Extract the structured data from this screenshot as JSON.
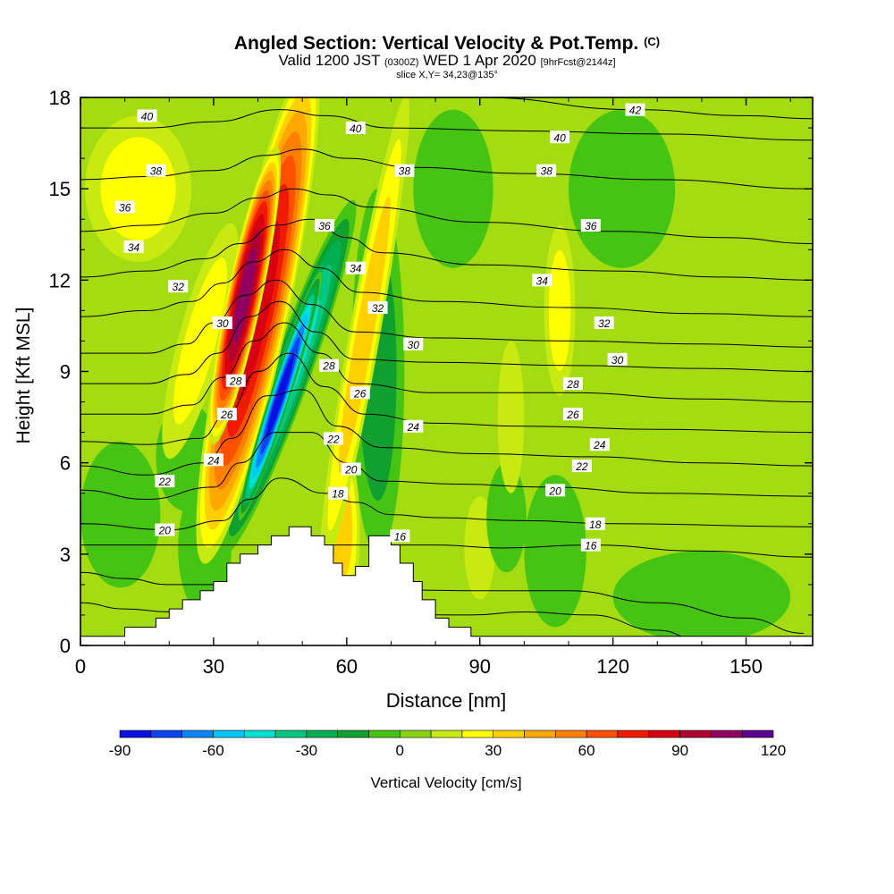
{
  "header": {
    "title_main": "Angled Section: Vertical Velocity & Pot.Temp.",
    "title_unit": "(C)",
    "valid_pre": "Valid 1200 JST",
    "valid_z": "(0300Z)",
    "valid_post": "WED 1 Apr 2020",
    "valid_fcst": "[9hrFcst@2144z]",
    "slice": "slice X,Y= 34,23@135°"
  },
  "colors": {
    "background": "#a4dc12",
    "contour": "#000000",
    "terrain": "#ffffff"
  },
  "chart_data": {
    "type": "heatmap",
    "xlabel": "Distance [nm]",
    "ylabel": "Height [Kft MSL]",
    "xlim": [
      0,
      165
    ],
    "ylim": [
      0,
      18
    ],
    "xticks": [
      0,
      30,
      60,
      90,
      120,
      150
    ],
    "yticks": [
      0,
      3,
      6,
      9,
      12,
      15,
      18
    ],
    "colorbar": {
      "label": "Vertical Velocity [cm/s]",
      "ticks": [
        -90,
        -60,
        -30,
        0,
        30,
        60,
        90,
        120
      ],
      "colors": [
        "#0a10e0",
        "#0a44f0",
        "#0a86fa",
        "#00c6ff",
        "#00e2d0",
        "#00c880",
        "#00b050",
        "#10a030",
        "#46c414",
        "#8ad414",
        "#c8ea10",
        "#ffff00",
        "#ffd000",
        "#ffa800",
        "#ff8000",
        "#ff5000",
        "#f01a00",
        "#d80010",
        "#b00030",
        "#900060",
        "#5c0090"
      ],
      "steps": [
        -90,
        -80,
        -70,
        -60,
        -50,
        -40,
        -30,
        -20,
        -10,
        0,
        10,
        20,
        30,
        40,
        50,
        60,
        70,
        80,
        90,
        100,
        110,
        120
      ]
    },
    "terrain_profile": [
      [
        0,
        0.3
      ],
      [
        10,
        0.3
      ],
      [
        10,
        0.6
      ],
      [
        17,
        0.6
      ],
      [
        17,
        0.9
      ],
      [
        20,
        0.9
      ],
      [
        20,
        1.2
      ],
      [
        23,
        1.2
      ],
      [
        23,
        1.5
      ],
      [
        27,
        1.5
      ],
      [
        27,
        1.8
      ],
      [
        30,
        1.8
      ],
      [
        30,
        2.1
      ],
      [
        33,
        2.1
      ],
      [
        33,
        2.7
      ],
      [
        36,
        2.7
      ],
      [
        36,
        3.0
      ],
      [
        40,
        3.0
      ],
      [
        40,
        3.3
      ],
      [
        43,
        3.3
      ],
      [
        43,
        3.6
      ],
      [
        47,
        3.6
      ],
      [
        47,
        3.9
      ],
      [
        52,
        3.9
      ],
      [
        52,
        3.6
      ],
      [
        55,
        3.6
      ],
      [
        55,
        3.3
      ],
      [
        57,
        3.3
      ],
      [
        57,
        2.7
      ],
      [
        59,
        2.7
      ],
      [
        59,
        2.3
      ],
      [
        62,
        2.3
      ],
      [
        62,
        2.6
      ],
      [
        65,
        2.6
      ],
      [
        65,
        3.6
      ],
      [
        70,
        3.6
      ],
      [
        70,
        3.3
      ],
      [
        72,
        3.3
      ],
      [
        72,
        2.7
      ],
      [
        75,
        2.7
      ],
      [
        75,
        2.1
      ],
      [
        77,
        2.1
      ],
      [
        77,
        1.5
      ],
      [
        80,
        1.5
      ],
      [
        80,
        0.9
      ],
      [
        83,
        0.9
      ],
      [
        83,
        0.6
      ],
      [
        88,
        0.6
      ],
      [
        88,
        0.3
      ],
      [
        165,
        0.3
      ]
    ],
    "w_features": [
      {
        "x": 40,
        "z": 11,
        "rx": 7,
        "rz": 8.5,
        "rot": 12,
        "w": 80
      },
      {
        "x": 37,
        "z": 11.5,
        "rx": 4,
        "rz": 5,
        "rot": 12,
        "w": 100
      },
      {
        "x": 47,
        "z": 8.8,
        "rx": 4.5,
        "rz": 6.2,
        "rot": 20,
        "w": -55
      },
      {
        "x": 45,
        "z": 8.2,
        "rx": 2.3,
        "rz": 4.3,
        "rot": 18,
        "w": -90
      },
      {
        "x": 64,
        "z": 10.2,
        "rx": 3.5,
        "rz": 8,
        "rot": 10,
        "w": 38
      },
      {
        "x": 59,
        "z": 3.8,
        "rx": 4,
        "rz": 2.8,
        "rot": 0,
        "w": 30
      },
      {
        "x": 67,
        "z": 9,
        "rx": 6,
        "rz": 6,
        "rot": 0,
        "w": -20
      },
      {
        "x": 13,
        "z": 15,
        "rx": 12,
        "rz": 2.4,
        "rot": 0,
        "w": 20
      },
      {
        "x": 27,
        "z": 10,
        "rx": 5,
        "rz": 4,
        "rot": 15,
        "w": 20
      },
      {
        "x": 108,
        "z": 11,
        "rx": 3.5,
        "rz": 2.8,
        "rot": 0,
        "w": 20
      },
      {
        "x": 97,
        "z": 7.5,
        "rx": 3,
        "rz": 2.5,
        "rot": 0,
        "w": 15
      },
      {
        "x": 90,
        "z": 3.2,
        "rx": 3.5,
        "rz": 1.7,
        "rot": 0,
        "w": 12
      },
      {
        "x": 24,
        "z": 6.2,
        "rx": 7,
        "rz": 1.8,
        "rot": 0,
        "w": -12
      },
      {
        "x": 9,
        "z": 4.3,
        "rx": 9,
        "rz": 2.4,
        "rot": 0,
        "w": -17
      },
      {
        "x": 28,
        "z": 3.2,
        "rx": 6,
        "rz": 2.2,
        "rot": 0,
        "w": -12
      },
      {
        "x": 107,
        "z": 3.1,
        "rx": 7,
        "rz": 2.5,
        "rot": 0,
        "w": -15
      },
      {
        "x": 140,
        "z": 1.6,
        "rx": 20,
        "rz": 1.5,
        "rot": 0,
        "w": -12
      },
      {
        "x": 84,
        "z": 15,
        "rx": 9,
        "rz": 2.6,
        "rot": 0,
        "w": -12
      },
      {
        "x": 122,
        "z": 15,
        "rx": 12,
        "rz": 2.6,
        "rot": 0,
        "w": -12
      },
      {
        "x": 96,
        "z": 4.2,
        "rx": 4.5,
        "rz": 1.8,
        "rot": 0,
        "w": -12
      }
    ],
    "isentropes": [
      [
        12,
        [
          [
            0,
            1.4
          ],
          [
            10,
            1.2
          ],
          [
            20,
            1.1
          ],
          [
            32,
            1.2
          ],
          [
            88,
            1.0
          ],
          [
            100,
            1.1
          ],
          [
            115,
            1.0
          ],
          [
            130,
            0.5
          ],
          [
            140,
            0.15
          ]
        ]
      ],
      [
        14,
        [
          [
            0,
            2.4
          ],
          [
            10,
            2.2
          ],
          [
            20,
            2.0
          ],
          [
            35,
            2.0
          ],
          [
            90,
            1.8
          ],
          [
            110,
            1.8
          ],
          [
            130,
            1.4
          ],
          [
            150,
            0.9
          ],
          [
            163,
            0.4
          ]
        ]
      ],
      [
        16,
        [
          [
            0,
            3.3
          ],
          [
            20,
            3.3
          ],
          [
            34,
            3.3
          ],
          [
            80,
            3.3
          ],
          [
            95,
            3.2
          ],
          [
            115,
            3.3
          ],
          [
            140,
            3.1
          ],
          [
            165,
            2.9
          ]
        ]
      ],
      [
        18,
        [
          [
            0,
            4.0
          ],
          [
            20,
            3.8
          ],
          [
            32,
            4.1
          ],
          [
            38,
            4.8
          ],
          [
            45,
            5.5
          ],
          [
            55,
            5.0
          ],
          [
            62,
            4.7
          ],
          [
            70,
            4.3
          ],
          [
            80,
            4.2
          ],
          [
            100,
            4.1
          ],
          [
            120,
            4.0
          ],
          [
            165,
            3.9
          ]
        ]
      ],
      [
        20,
        [
          [
            0,
            5.1
          ],
          [
            15,
            4.8
          ],
          [
            30,
            5.2
          ],
          [
            36,
            6.0
          ],
          [
            44,
            7.0
          ],
          [
            52,
            7.0
          ],
          [
            60,
            6.0
          ],
          [
            68,
            5.4
          ],
          [
            85,
            5.3
          ],
          [
            105,
            5.2
          ],
          [
            130,
            5.0
          ],
          [
            165,
            4.9
          ]
        ]
      ],
      [
        22,
        [
          [
            0,
            5.9
          ],
          [
            15,
            5.6
          ],
          [
            28,
            6.0
          ],
          [
            34,
            6.8
          ],
          [
            42,
            8.2
          ],
          [
            50,
            8.4
          ],
          [
            58,
            7.2
          ],
          [
            68,
            6.5
          ],
          [
            90,
            6.3
          ],
          [
            115,
            6.2
          ],
          [
            140,
            6.0
          ],
          [
            165,
            5.9
          ]
        ]
      ],
      [
        24,
        [
          [
            0,
            6.7
          ],
          [
            15,
            6.6
          ],
          [
            27,
            6.8
          ],
          [
            33,
            7.6
          ],
          [
            40,
            9.0
          ],
          [
            47,
            9.6
          ],
          [
            55,
            8.5
          ],
          [
            64,
            7.6
          ],
          [
            80,
            7.3
          ],
          [
            100,
            7.2
          ],
          [
            130,
            7.1
          ],
          [
            165,
            7.0
          ]
        ]
      ],
      [
        26,
        [
          [
            0,
            7.6
          ],
          [
            15,
            7.6
          ],
          [
            25,
            7.9
          ],
          [
            32,
            8.8
          ],
          [
            39,
            10.0
          ],
          [
            46,
            10.6
          ],
          [
            54,
            9.6
          ],
          [
            62,
            8.6
          ],
          [
            80,
            8.3
          ],
          [
            110,
            8.3
          ],
          [
            140,
            8.1
          ],
          [
            165,
            8.0
          ]
        ]
      ],
      [
        28,
        [
          [
            0,
            8.6
          ],
          [
            15,
            8.6
          ],
          [
            24,
            8.9
          ],
          [
            31,
            9.6
          ],
          [
            38,
            10.8
          ],
          [
            45,
            11.3
          ],
          [
            53,
            10.3
          ],
          [
            62,
            9.4
          ],
          [
            80,
            9.3
          ],
          [
            110,
            9.2
          ],
          [
            140,
            9.1
          ],
          [
            165,
            9.0
          ]
        ]
      ],
      [
        30,
        [
          [
            0,
            9.6
          ],
          [
            15,
            9.6
          ],
          [
            24,
            9.9
          ],
          [
            30,
            10.6
          ],
          [
            37,
            11.5
          ],
          [
            44,
            12.0
          ],
          [
            52,
            11.2
          ],
          [
            62,
            10.3
          ],
          [
            80,
            10.1
          ],
          [
            110,
            10.0
          ],
          [
            140,
            9.9
          ],
          [
            165,
            9.8
          ]
        ]
      ],
      [
        32,
        [
          [
            0,
            10.8
          ],
          [
            15,
            11.0
          ],
          [
            25,
            11.3
          ],
          [
            32,
            11.9
          ],
          [
            39,
            12.6
          ],
          [
            46,
            13.0
          ],
          [
            54,
            12.4
          ],
          [
            63,
            11.6
          ],
          [
            80,
            11.3
          ],
          [
            110,
            11.1
          ],
          [
            140,
            10.9
          ],
          [
            165,
            10.8
          ]
        ]
      ],
      [
        34,
        [
          [
            0,
            12.1
          ],
          [
            15,
            12.3
          ],
          [
            28,
            12.7
          ],
          [
            36,
            13.2
          ],
          [
            44,
            13.8
          ],
          [
            52,
            14.0
          ],
          [
            60,
            13.4
          ],
          [
            68,
            12.9
          ],
          [
            90,
            12.5
          ],
          [
            120,
            12.3
          ],
          [
            145,
            12.1
          ],
          [
            165,
            12.0
          ]
        ]
      ],
      [
        36,
        [
          [
            0,
            13.6
          ],
          [
            15,
            13.8
          ],
          [
            30,
            14.2
          ],
          [
            40,
            14.7
          ],
          [
            48,
            15.0
          ],
          [
            56,
            14.8
          ],
          [
            65,
            14.4
          ],
          [
            90,
            13.9
          ],
          [
            120,
            13.6
          ],
          [
            145,
            13.4
          ],
          [
            165,
            13.2
          ]
        ]
      ],
      [
        38,
        [
          [
            0,
            15.3
          ],
          [
            15,
            15.4
          ],
          [
            30,
            15.6
          ],
          [
            42,
            16.1
          ],
          [
            50,
            16.3
          ],
          [
            60,
            16.0
          ],
          [
            75,
            15.7
          ],
          [
            100,
            15.5
          ],
          [
            130,
            15.3
          ],
          [
            165,
            15.0
          ]
        ]
      ],
      [
        40,
        [
          [
            0,
            17.0
          ],
          [
            15,
            17.0
          ],
          [
            30,
            17.2
          ],
          [
            45,
            17.6
          ],
          [
            55,
            17.4
          ],
          [
            70,
            17.0
          ],
          [
            100,
            16.9
          ],
          [
            130,
            16.8
          ],
          [
            165,
            16.6
          ]
        ]
      ],
      [
        42,
        [
          [
            60,
            18.2
          ],
          [
            90,
            18.0
          ],
          [
            125,
            17.6
          ],
          [
            150,
            17.4
          ],
          [
            165,
            17.3
          ]
        ]
      ]
    ],
    "contour_labels": [
      [
        16,
        72,
        3.6
      ],
      [
        16,
        115,
        3.3
      ],
      [
        18,
        58,
        5.0
      ],
      [
        18,
        116,
        4.0
      ],
      [
        20,
        19,
        3.8
      ],
      [
        20,
        61,
        5.8
      ],
      [
        20,
        107,
        5.1
      ],
      [
        22,
        19,
        5.4
      ],
      [
        22,
        57,
        6.8
      ],
      [
        22,
        113,
        5.9
      ],
      [
        24,
        30,
        6.1
      ],
      [
        24,
        75,
        7.2
      ],
      [
        24,
        117,
        6.6
      ],
      [
        26,
        33,
        7.6
      ],
      [
        26,
        63,
        8.3
      ],
      [
        26,
        111,
        7.6
      ],
      [
        28,
        35,
        8.7
      ],
      [
        28,
        56,
        9.2
      ],
      [
        28,
        111,
        8.6
      ],
      [
        30,
        32,
        10.6
      ],
      [
        30,
        75,
        9.9
      ],
      [
        30,
        121,
        9.4
      ],
      [
        32,
        22,
        11.8
      ],
      [
        32,
        67,
        11.1
      ],
      [
        32,
        118,
        10.6
      ],
      [
        34,
        12,
        13.1
      ],
      [
        34,
        62,
        12.4
      ],
      [
        34,
        104,
        12.0
      ],
      [
        36,
        10,
        14.4
      ],
      [
        36,
        55,
        13.8
      ],
      [
        36,
        115,
        13.8
      ],
      [
        38,
        17,
        15.6
      ],
      [
        38,
        73,
        15.6
      ],
      [
        38,
        105,
        15.6
      ],
      [
        40,
        15,
        17.4
      ],
      [
        40,
        62,
        17.0
      ],
      [
        40,
        108,
        16.7
      ],
      [
        42,
        125,
        17.6
      ]
    ]
  }
}
